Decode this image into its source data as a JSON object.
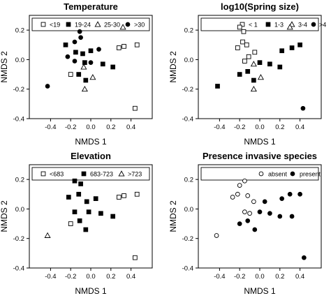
{
  "chart_data": [
    {
      "type": "scatter",
      "title": "Temperature",
      "xlabel": "NMDS 1",
      "ylabel": "NMDS 2",
      "xlim": [
        -0.5,
        0.5
      ],
      "ylim": [
        -0.4,
        0.3
      ],
      "x_ticks": [
        "-0.4",
        "-0.2",
        "0.0",
        "0.2",
        "0.4"
      ],
      "y_ticks": [
        "-0.4",
        "-0.2",
        "0.0",
        "0.2"
      ],
      "legend_position": "top",
      "series": [
        {
          "name": "<19",
          "marker": "open-square",
          "points": [
            [
              0.28,
              0.08
            ],
            [
              0.33,
              0.09
            ],
            [
              0.46,
              0.1
            ],
            [
              0.44,
              -0.33
            ],
            [
              -0.2,
              -0.1
            ]
          ]
        },
        {
          "name": "19-24",
          "marker": "filled-square",
          "points": [
            [
              -0.25,
              0.1
            ],
            [
              -0.15,
              0.05
            ],
            [
              -0.08,
              0.04
            ],
            [
              -0.06,
              -0.02
            ],
            [
              0.0,
              0.06
            ],
            [
              -0.12,
              -0.1
            ],
            [
              0.12,
              -0.03
            ],
            [
              0.22,
              -0.05
            ],
            [
              -0.05,
              -0.14
            ]
          ]
        },
        {
          "name": "25-30",
          "marker": "open-triangle",
          "points": [
            [
              0.32,
              0.22
            ],
            [
              -0.07,
              -0.05
            ],
            [
              0.02,
              -0.12
            ],
            [
              -0.06,
              -0.2
            ]
          ]
        },
        {
          "name": ">30",
          "marker": "filled-circle",
          "points": [
            [
              -0.43,
              -0.18
            ],
            [
              -0.23,
              0.02
            ],
            [
              -0.16,
              0.12
            ],
            [
              -0.1,
              0.15
            ],
            [
              -0.11,
              0.19
            ],
            [
              -0.16,
              -0.01
            ],
            [
              0.0,
              -0.02
            ],
            [
              0.08,
              0.07
            ]
          ]
        }
      ]
    },
    {
      "type": "scatter",
      "title": "log10(Spring size)",
      "xlabel": "NMDS 1",
      "ylabel": "NMDS 2",
      "xlim": [
        -0.5,
        0.5
      ],
      "ylim": [
        -0.4,
        0.3
      ],
      "x_ticks": [
        "-0.4",
        "-0.2",
        "0.0",
        "0.2",
        "0.4"
      ],
      "y_ticks": [
        "-0.4",
        "-0.2",
        "0.0",
        "0.2"
      ],
      "legend_position": "top",
      "series": [
        {
          "name": "< 1",
          "marker": "open-square",
          "points": [
            [
              -0.2,
              0.22
            ],
            [
              -0.16,
              0.19
            ],
            [
              -0.22,
              0.08
            ],
            [
              -0.17,
              0.12
            ],
            [
              -0.13,
              0.1
            ],
            [
              -0.11,
              0.02
            ],
            [
              -0.15,
              -0.01
            ],
            [
              -0.05,
              0.05
            ]
          ]
        },
        {
          "name": "1-3",
          "marker": "filled-square",
          "points": [
            [
              -0.42,
              -0.18
            ],
            [
              -0.2,
              -0.1
            ],
            [
              -0.12,
              -0.08
            ],
            [
              0.0,
              -0.02
            ],
            [
              0.1,
              -0.03
            ],
            [
              0.2,
              -0.05
            ],
            [
              0.22,
              0.06
            ],
            [
              0.32,
              0.08
            ],
            [
              0.4,
              0.1
            ],
            [
              -0.06,
              -0.14
            ]
          ]
        },
        {
          "name": "3-4",
          "marker": "open-triangle",
          "points": [
            [
              0.3,
              0.22
            ],
            [
              -0.06,
              -0.03
            ],
            [
              0.01,
              -0.12
            ],
            [
              -0.06,
              -0.2
            ]
          ]
        },
        {
          "name": ">4",
          "marker": "filled-circle",
          "points": [
            [
              0.43,
              -0.33
            ]
          ]
        }
      ]
    },
    {
      "type": "scatter",
      "title": "Elevation",
      "xlabel": "NMDS 1",
      "ylabel": "NMDS 2",
      "xlim": [
        -0.5,
        0.5
      ],
      "ylim": [
        -0.4,
        0.3
      ],
      "x_ticks": [
        "-0.4",
        "-0.2",
        "0.0",
        "0.2",
        "0.4"
      ],
      "y_ticks": [
        "-0.4",
        "-0.2",
        "0.0",
        "0.2"
      ],
      "legend_position": "top",
      "series": [
        {
          "name": "<683",
          "marker": "open-square",
          "points": [
            [
              0.28,
              0.08
            ],
            [
              0.33,
              0.09
            ],
            [
              0.46,
              0.1
            ],
            [
              0.44,
              -0.33
            ],
            [
              -0.2,
              -0.1
            ]
          ]
        },
        {
          "name": "683-723",
          "marker": "filled-square",
          "points": [
            [
              -0.16,
              0.19
            ],
            [
              -0.1,
              0.17
            ],
            [
              -0.22,
              0.08
            ],
            [
              -0.12,
              0.1
            ],
            [
              -0.04,
              0.05
            ],
            [
              0.05,
              0.07
            ],
            [
              -0.16,
              -0.02
            ],
            [
              -0.11,
              -0.08
            ],
            [
              -0.02,
              -0.02
            ],
            [
              0.1,
              -0.03
            ],
            [
              0.22,
              -0.05
            ],
            [
              -0.05,
              -0.14
            ]
          ]
        },
        {
          "name": ">723",
          "marker": "open-triangle",
          "points": [
            [
              -0.43,
              -0.18
            ]
          ]
        }
      ]
    },
    {
      "type": "scatter",
      "title": "Presence invasive species",
      "xlabel": "NMDS 1",
      "ylabel": "NMDS 2",
      "xlim": [
        -0.5,
        0.5
      ],
      "ylim": [
        -0.4,
        0.3
      ],
      "x_ticks": [
        "-0.4",
        "-0.2",
        "0.0",
        "0.2",
        "0.4"
      ],
      "y_ticks": [
        "-0.4",
        "-0.2",
        "0.0",
        "0.2"
      ],
      "legend_position": "top",
      "series": [
        {
          "name": "absent",
          "marker": "open-circle",
          "points": [
            [
              -0.43,
              -0.18
            ],
            [
              -0.27,
              0.08
            ],
            [
              -0.2,
              0.16
            ],
            [
              -0.15,
              0.19
            ],
            [
              -0.22,
              0.1
            ],
            [
              -0.12,
              0.09
            ],
            [
              -0.15,
              -0.02
            ],
            [
              -0.06,
              0.05
            ],
            [
              -0.1,
              -0.03
            ]
          ]
        },
        {
          "name": "present",
          "marker": "filled-circle",
          "points": [
            [
              -0.2,
              -0.1
            ],
            [
              -0.12,
              -0.08
            ],
            [
              0.0,
              -0.02
            ],
            [
              0.05,
              0.05
            ],
            [
              0.1,
              -0.03
            ],
            [
              0.2,
              -0.05
            ],
            [
              0.22,
              0.07
            ],
            [
              0.3,
              0.1
            ],
            [
              0.4,
              0.1
            ],
            [
              0.44,
              -0.33
            ],
            [
              -0.05,
              -0.14
            ],
            [
              0.32,
              -0.05
            ]
          ]
        }
      ]
    }
  ]
}
